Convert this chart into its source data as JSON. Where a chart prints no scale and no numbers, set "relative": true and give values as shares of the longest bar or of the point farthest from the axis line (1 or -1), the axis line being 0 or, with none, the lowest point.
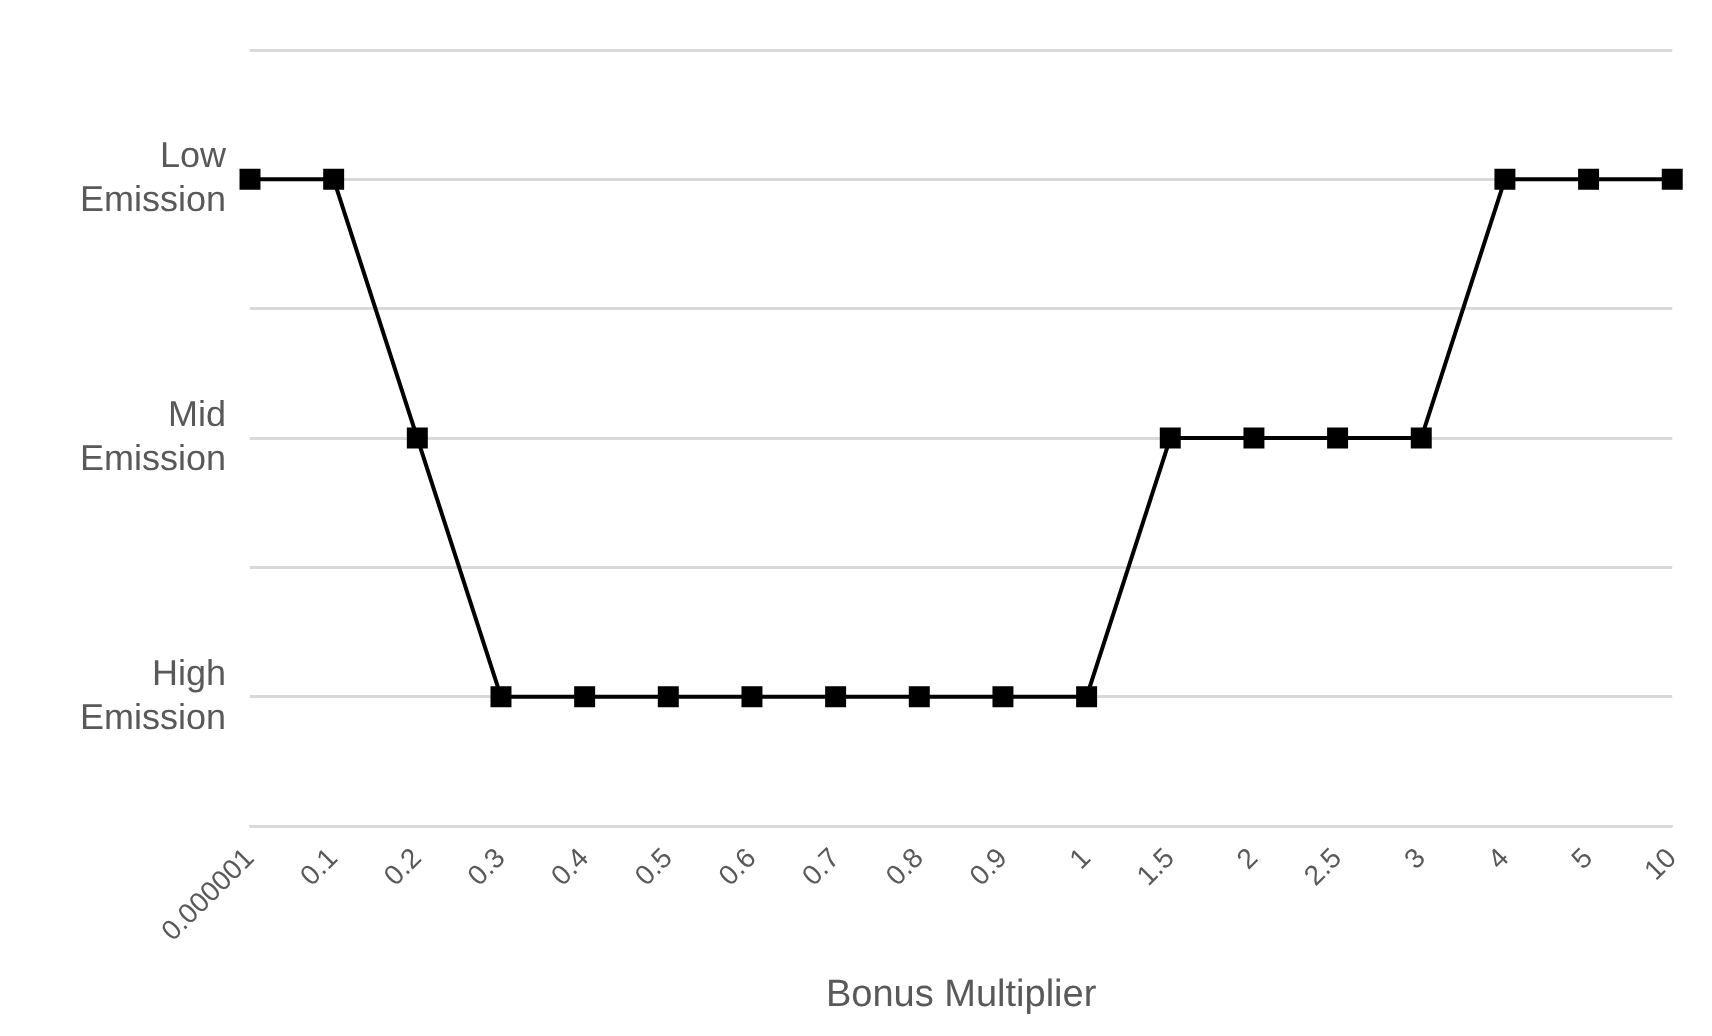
{
  "chart_data": {
    "type": "line",
    "xlabel": "Bonus Multiplier",
    "relative": true,
    "categories": [
      "0.000001",
      "0.1",
      "0.2",
      "0.3",
      "0.4",
      "0.5",
      "0.6",
      "0.7",
      "0.8",
      "0.9",
      "1",
      "1.5",
      "2",
      "2.5",
      "3",
      "4",
      "5",
      "10"
    ],
    "series": [
      {
        "color": "#000000",
        "values": [
          1,
          1,
          0.6,
          0.2,
          0.2,
          0.2,
          0.2,
          0.2,
          0.2,
          0.2,
          0.2,
          0.6,
          0.6,
          0.6,
          0.6,
          1,
          1,
          1
        ]
      }
    ],
    "annotations": [
      "Low Emission",
      "Mid Emission",
      "High Emission"
    ],
    "grid": "y",
    "legend": false,
    "marker": "square",
    "line_style": "solid"
  }
}
